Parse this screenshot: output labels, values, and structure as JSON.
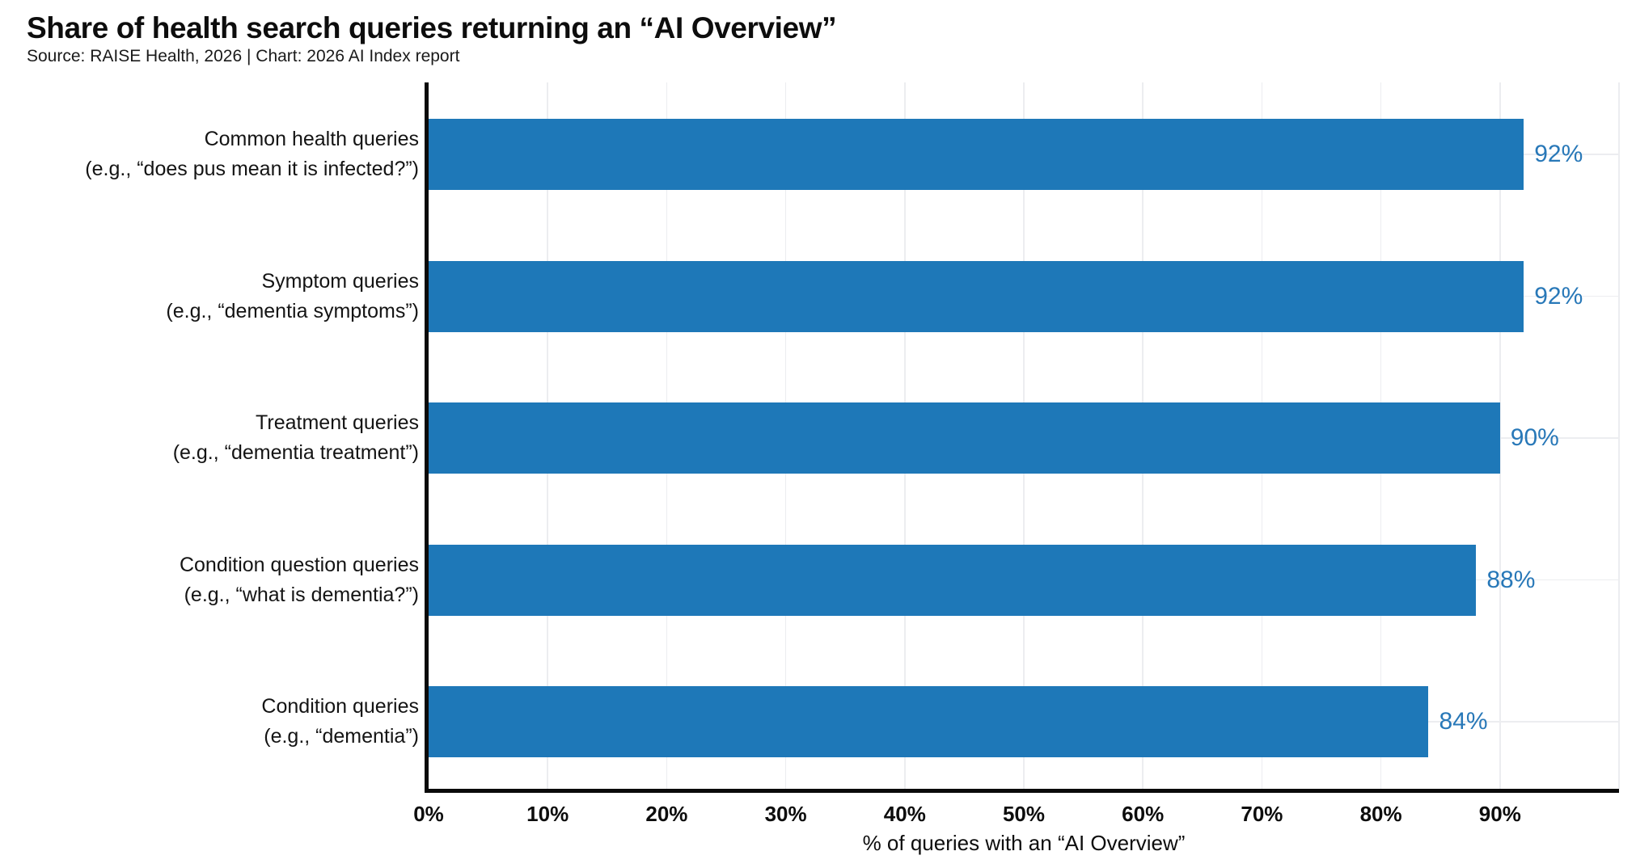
{
  "chart_data": {
    "type": "bar",
    "orientation": "horizontal",
    "title": "Share of health search queries returning an “AI Overview”",
    "source": "Source: RAISE Health, 2026 | Chart: 2026 AI Index report",
    "categories": [
      {
        "label": "Common health queries",
        "example": "(e.g., “does pus mean it is infected?”)"
      },
      {
        "label": "Symptom queries",
        "example": "(e.g., “dementia symptoms”)"
      },
      {
        "label": "Treatment queries",
        "example": "(e.g., “dementia treatment”)"
      },
      {
        "label": "Condition question queries",
        "example": "(e.g., “what is dementia?”)"
      },
      {
        "label": "Condition queries",
        "example": "(e.g., “dementia”)"
      }
    ],
    "values": [
      92,
      92,
      90,
      88,
      84
    ],
    "value_labels": [
      "92%",
      "92%",
      "90%",
      "88%",
      "84%"
    ],
    "xlabel": "% of queries with an “AI Overview”",
    "x_ticks": [
      {
        "value": 0,
        "label": "0%"
      },
      {
        "value": 10,
        "label": "10%"
      },
      {
        "value": 20,
        "label": "20%"
      },
      {
        "value": 30,
        "label": "30%"
      },
      {
        "value": 40,
        "label": "40%"
      },
      {
        "value": 50,
        "label": "50%"
      },
      {
        "value": 60,
        "label": "60%"
      },
      {
        "value": 70,
        "label": "70%"
      },
      {
        "value": 80,
        "label": "80%"
      },
      {
        "value": 90,
        "label": "90%"
      }
    ],
    "xlim": [
      0,
      100
    ],
    "grid": true,
    "legend": null,
    "colors": {
      "bar": "#1E78B8",
      "value_label": "#2878B8",
      "grid": "#ECEDF0",
      "axis": "#0A0A0A"
    }
  }
}
